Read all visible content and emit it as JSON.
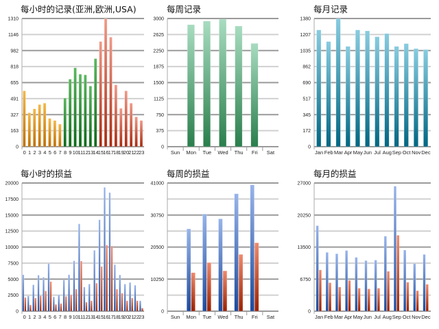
{
  "chart_data": [
    {
      "id": "hourly-records",
      "type": "bar",
      "title": "每小时的记录(亚洲,欧洲,USA)",
      "categories": [
        "0",
        "1",
        "2",
        "3",
        "4",
        "5",
        "6",
        "7",
        "8",
        "9",
        "10",
        "11",
        "12",
        "13",
        "14",
        "15",
        "16",
        "17",
        "18",
        "19",
        "20",
        "21",
        "22",
        "23"
      ],
      "series": [
        {
          "name": "records",
          "values": [
            571,
            347,
            387,
            431,
            445,
            289,
            268,
            231,
            497,
            690,
            806,
            741,
            734,
            620,
            900,
            1075,
            1310,
            1119,
            632,
            392,
            571,
            445,
            305,
            268
          ]
        }
      ],
      "bar_groups": [
        "asia",
        "asia",
        "asia",
        "asia",
        "asia",
        "asia",
        "asia",
        "asia",
        "europe",
        "europe",
        "europe",
        "europe",
        "europe",
        "europe",
        "europe",
        "usa",
        "usa",
        "usa",
        "usa",
        "usa",
        "usa",
        "usa",
        "usa",
        "usa"
      ],
      "ylim": [
        0,
        1310
      ],
      "y_tick_labels": [
        "0",
        "163",
        "327",
        "491",
        "655",
        "818",
        "982",
        "1146",
        "1310"
      ],
      "colors": {
        "asia": "#d08a10",
        "europe": "#1f8a2a",
        "usa": "#c8452a"
      }
    },
    {
      "id": "weekly-records",
      "type": "bar",
      "title": "每周记录",
      "categories": [
        "Sun",
        "Mon",
        "Tue",
        "Wed",
        "Thu",
        "Fri",
        "Sat"
      ],
      "series": [
        {
          "name": "records",
          "values": [
            0,
            2856,
            2941,
            2984,
            2824,
            2418,
            0
          ]
        }
      ],
      "ylim": [
        0,
        3000
      ],
      "y_tick_labels": [
        "0",
        "375",
        "750",
        "1125",
        "1500",
        "1875",
        "2250",
        "2625",
        "3000"
      ],
      "colors": {
        "main": "#3a9060"
      }
    },
    {
      "id": "monthly-records",
      "type": "bar",
      "title": "每月记录",
      "categories": [
        "Jan",
        "Feb",
        "Mar",
        "Apr",
        "May",
        "Jun",
        "Jul",
        "Aug",
        "Sep",
        "Oct",
        "Nov",
        "Dec"
      ],
      "series": [
        {
          "name": "records",
          "values": [
            1257,
            1132,
            1380,
            1080,
            1257,
            1247,
            1184,
            1218,
            1080,
            1110,
            1056,
            1046
          ]
        }
      ],
      "ylim": [
        0,
        1380
      ],
      "y_tick_labels": [
        "0",
        "172",
        "345",
        "517",
        "690",
        "862",
        "1035",
        "1207",
        "1380"
      ],
      "colors": {
        "main": "#1a88a8"
      }
    },
    {
      "id": "hourly-profit",
      "type": "bar",
      "title": "每小时的损益",
      "categories": [
        "0",
        "1",
        "2",
        "3",
        "4",
        "5",
        "6",
        "7",
        "8",
        "9",
        "10",
        "11",
        "12",
        "13",
        "14",
        "15",
        "16",
        "17",
        "18",
        "19",
        "20",
        "21",
        "22",
        "23"
      ],
      "series": [
        {
          "name": "blue",
          "values": [
            5694,
            2384,
            4128,
            5623,
            5302,
            7438,
            2242,
            2562,
            4911,
            5694,
            7865,
            13630,
            3772,
            4235,
            9502,
            14270,
            19324,
            18505,
            7260,
            5658,
            4235,
            4484,
            4057,
            1637
          ]
        },
        {
          "name": "red",
          "values": [
            2135,
            996,
            2064,
            2420,
            3167,
            4626,
            1068,
            1210,
            2313,
            2562,
            3452,
            7829,
            1423,
            1637,
            4377,
            6975,
            10320,
            10178,
            3452,
            2811,
            1637,
            2064,
            1637,
            498
          ]
        }
      ],
      "ylim": [
        0,
        20000
      ],
      "y_tick_labels": [
        "0",
        "2500",
        "5000",
        "7500",
        "10000",
        "12500",
        "15000",
        "17500",
        "20000"
      ],
      "colors": {
        "blue": "#3060b0",
        "red": "#c84020"
      }
    },
    {
      "id": "weekly-profit",
      "type": "bar",
      "title": "每周的损益",
      "categories": [
        "Sun",
        "Mon",
        "Tue",
        "Wed",
        "Thu",
        "Fri",
        "Sat"
      ],
      "series": [
        {
          "name": "blue",
          "values": [
            0,
            26336,
            31078,
            29546,
            37571,
            40416,
            0
          ]
        },
        {
          "name": "red",
          "values": [
            0,
            12330,
            15540,
            12913,
            18166,
            21886,
            0
          ]
        }
      ],
      "ylim": [
        0,
        41000
      ],
      "y_tick_labels": [
        "0",
        "",
        "10250",
        "",
        "20500",
        "",
        "30750",
        "",
        "41000"
      ],
      "colors": {
        "blue": "#3060b0",
        "red": "#c84020"
      }
    },
    {
      "id": "monthly-profit",
      "type": "bar",
      "title": "每月的损益",
      "categories": [
        "Jan",
        "Feb",
        "Mar",
        "Apr",
        "May",
        "Jun",
        "Jul",
        "Aug",
        "Sep",
        "Oct",
        "Nov",
        "Dec"
      ],
      "series": [
        {
          "name": "blue",
          "values": [
            18016,
            12395,
            12107,
            12780,
            11338,
            10665,
            10761,
            15806,
            26327,
            12876,
            10040,
            11963
          ]
        },
        {
          "name": "red",
          "values": [
            8696,
            6005,
            5092,
            6486,
            4852,
            4708,
            4852,
            8408,
            15998,
            6102,
            4324,
            5669
          ]
        }
      ],
      "ylim": [
        0,
        27000
      ],
      "y_tick_labels": [
        "0",
        "",
        "6750",
        "",
        "13500",
        "",
        "20250",
        "",
        "27000"
      ],
      "colors": {
        "blue": "#3060b0",
        "red": "#c84020"
      }
    }
  ]
}
